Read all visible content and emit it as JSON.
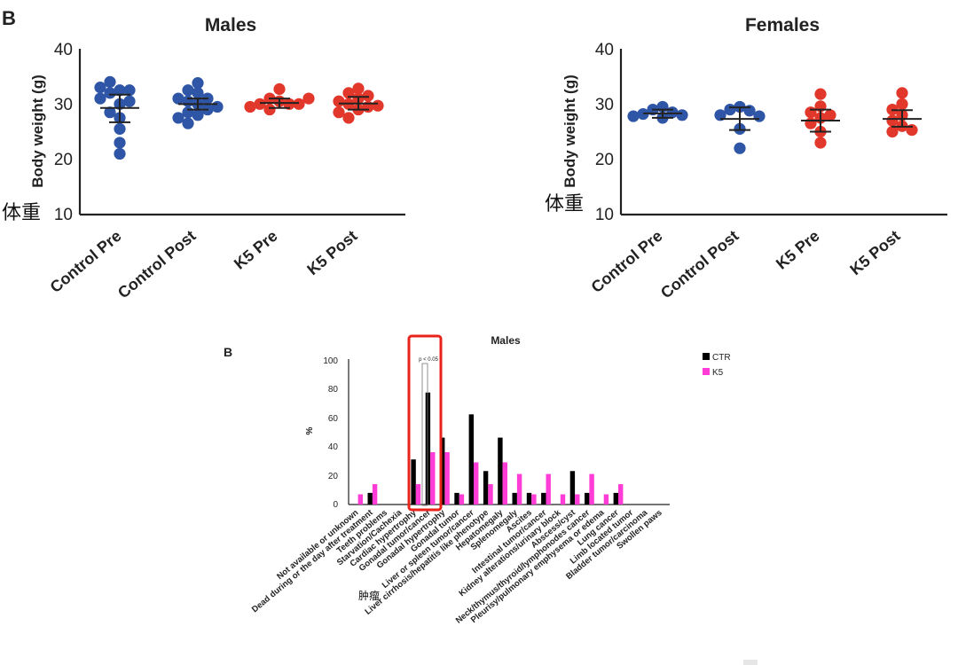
{
  "panel_letter_top": "B",
  "panel_letter_bottom": "B",
  "chinese_overlay": "体重",
  "tumor_overlay": "肿瘤",
  "colors": {
    "control": "#2f56a6",
    "k5": "#e2372b",
    "ctr_bar": "#000000",
    "k5_bar": "#ff3cd6",
    "highlight": "#e8231a"
  },
  "chart_data": [
    {
      "type": "scatter",
      "title": "Males",
      "ylabel": "Body weight (g)",
      "ylim": [
        10,
        40
      ],
      "yticks": [
        "10",
        "20",
        "30",
        "40"
      ],
      "categories": [
        "Control Pre",
        "Control Post",
        "K5 Pre",
        "K5 Post"
      ],
      "group_stats": [
        {
          "mean": 29.3,
          "lo": 26.7,
          "hi": 31.7
        },
        {
          "mean": 30.0,
          "lo": 29.0,
          "hi": 31.0
        },
        {
          "mean": 30.2,
          "lo": 29.3,
          "hi": 31.0
        },
        {
          "mean": 30.1,
          "lo": 29.0,
          "hi": 31.3
        }
      ],
      "points": [
        [
          32.5,
          32,
          32.5,
          33,
          34,
          31,
          30,
          28.5,
          30.5,
          27.5,
          25.5,
          23,
          21
        ],
        [
          33.8,
          32.5,
          32,
          31,
          31,
          30.5,
          30,
          29.5,
          29,
          28.5,
          28,
          27.5,
          26.5
        ],
        [
          32.7,
          31,
          30.5,
          30,
          30,
          30,
          29.5,
          29,
          31
        ],
        [
          32.8,
          32,
          31.5,
          31,
          30.5,
          30,
          29.5,
          29,
          28.5,
          27.5,
          29.7
        ]
      ]
    },
    {
      "type": "scatter",
      "title": "Females",
      "ylabel": "Body weight (g)",
      "ylim": [
        10,
        40
      ],
      "yticks": [
        "10",
        "20",
        "30",
        "40"
      ],
      "categories": [
        "Control Pre",
        "Control Post",
        "K5 Pre",
        "K5 Post"
      ],
      "group_stats": [
        {
          "mean": 28.3,
          "lo": 27.5,
          "hi": 29.0
        },
        {
          "mean": 27.3,
          "lo": 25.3,
          "hi": 29.4
        },
        {
          "mean": 27.0,
          "lo": 25.0,
          "hi": 29.0
        },
        {
          "mean": 27.3,
          "lo": 25.9,
          "hi": 28.9
        }
      ],
      "points": [
        [
          29.5,
          29,
          28.5,
          28.2,
          28,
          27.8,
          27.5
        ],
        [
          29.5,
          29,
          28.8,
          28,
          27.8,
          25.5,
          22
        ],
        [
          31.8,
          29.6,
          28.5,
          28,
          27.5,
          26.5,
          25,
          23
        ],
        [
          32,
          30,
          29,
          28,
          27,
          26,
          25,
          25.3
        ]
      ]
    },
    {
      "type": "bar",
      "title": "Males",
      "ylabel": "%",
      "ylim": [
        0,
        100
      ],
      "yticks": [
        "0",
        "20",
        "40",
        "60",
        "80",
        "100"
      ],
      "annotation": "p < 0.05",
      "categories": [
        "Not available or unknown",
        "Dead during or the day after treatment",
        "Teeth problems",
        "Starvation/Cachexia",
        "Cardiac hypertrophy",
        "Gonadal tumor/cancer",
        "Gonadal hypertrophy",
        "Gonadal tumor",
        "Liver or spleen tumor/cancer",
        "Liver cirrhosis/hepatitis like phenotype",
        "Hepatomegaly",
        "Splenomegaly",
        "Ascites",
        "Intestinal tumor/cancer",
        "Kidney alterations/urinary block",
        "Abscess/cyst",
        "Neck/thymus/thyroid/lymphonodes cancer",
        "Pleurisy/pulmonary emphysema or edema",
        "Lung cancer",
        "Limb located tumor",
        "Bladder tumor/carcinoma",
        "Swollen paws"
      ],
      "series": [
        {
          "name": "CTR",
          "values": [
            0,
            8,
            0,
            0,
            31,
            77,
            46,
            8,
            62,
            23,
            46,
            8,
            8,
            8,
            0,
            23,
            8,
            0,
            8,
            0,
            0,
            0
          ]
        },
        {
          "name": "K5",
          "values": [
            7,
            14,
            0,
            0,
            14,
            36,
            36,
            7,
            29,
            14,
            29,
            21,
            7,
            21,
            7,
            7,
            21,
            7,
            14,
            0,
            0,
            0
          ]
        }
      ],
      "legend": [
        "CTR",
        "K5"
      ],
      "legend_position": "top-right"
    }
  ]
}
